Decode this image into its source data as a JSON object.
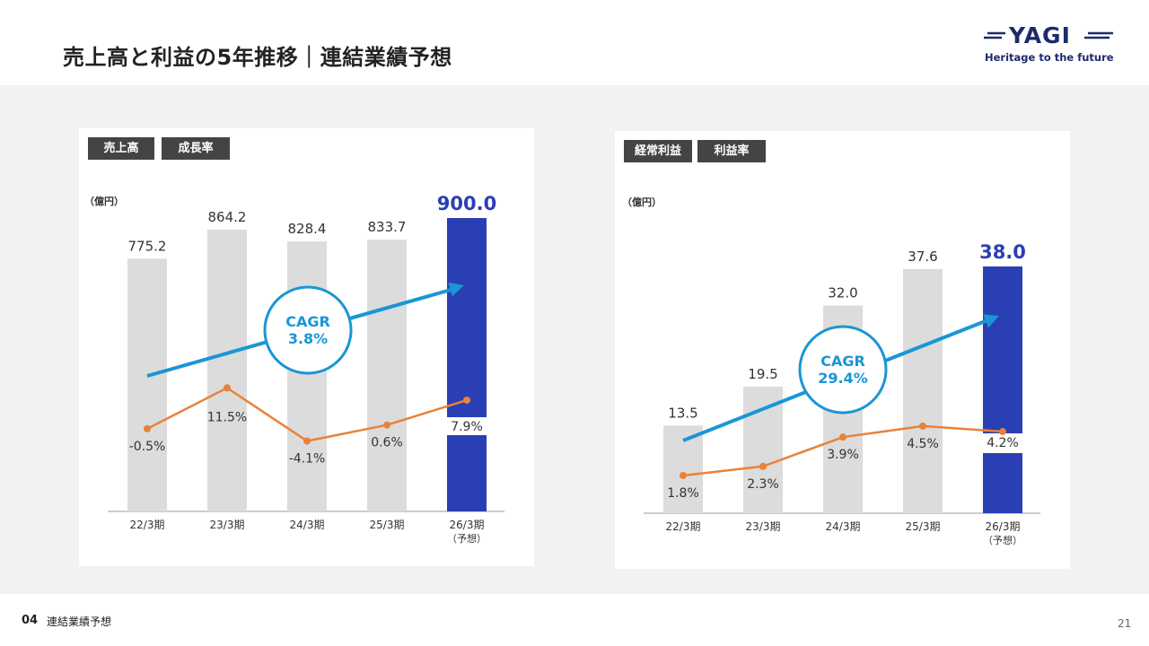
{
  "header": {
    "title": "売上高と利益の5年推移｜連結業績予想"
  },
  "logo": {
    "name": "YAGI",
    "tagline": "Heritage to the future"
  },
  "footer": {
    "section_number": "04",
    "section_title": "連結業績予想",
    "page_number": "21"
  },
  "colors": {
    "bar_gray": "#dcdcdc",
    "bar_forecast": "#2b3fb5",
    "line_orange": "#e8823a",
    "cagr_blue": "#1a96d4",
    "value_forecast": "#2b3fb5"
  },
  "chart_data": [
    {
      "type": "bar",
      "legend_tags": [
        "売上高",
        "成長率"
      ],
      "unit": "（億円）",
      "categories": [
        "22/3期",
        "23/3期",
        "24/3期",
        "25/3期",
        "26/3期"
      ],
      "category_notes": [
        "",
        "",
        "",
        "",
        "（予想）"
      ],
      "series": [
        {
          "name": "売上高",
          "values": [
            775.2,
            864.2,
            828.4,
            833.7,
            900.0
          ],
          "labels": [
            "775.2",
            "864.2",
            "828.4",
            "833.7",
            "900.0"
          ]
        },
        {
          "name": "成長率",
          "values": [
            -0.5,
            11.5,
            -4.1,
            0.6,
            7.9
          ],
          "labels": [
            "-0.5%",
            "11.5%",
            "-4.1%",
            "0.6%",
            "7.9%"
          ]
        }
      ],
      "forecast_index": 4,
      "cagr": {
        "label": "CAGR",
        "value": "3.8%"
      }
    },
    {
      "type": "bar",
      "legend_tags": [
        "経常利益",
        "利益率"
      ],
      "unit": "（億円）",
      "categories": [
        "22/3期",
        "23/3期",
        "24/3期",
        "25/3期",
        "26/3期"
      ],
      "category_notes": [
        "",
        "",
        "",
        "",
        "（予想）"
      ],
      "series": [
        {
          "name": "経常利益",
          "values": [
            13.5,
            19.5,
            32.0,
            37.6,
            38.0
          ],
          "labels": [
            "13.5",
            "19.5",
            "32.0",
            "37.6",
            "38.0"
          ]
        },
        {
          "name": "利益率",
          "values": [
            1.8,
            2.3,
            3.9,
            4.5,
            4.2
          ],
          "labels": [
            "1.8%",
            "2.3%",
            "3.9%",
            "4.5%",
            "4.2%"
          ]
        }
      ],
      "forecast_index": 4,
      "cagr": {
        "label": "CAGR",
        "value": "29.4%"
      }
    }
  ]
}
